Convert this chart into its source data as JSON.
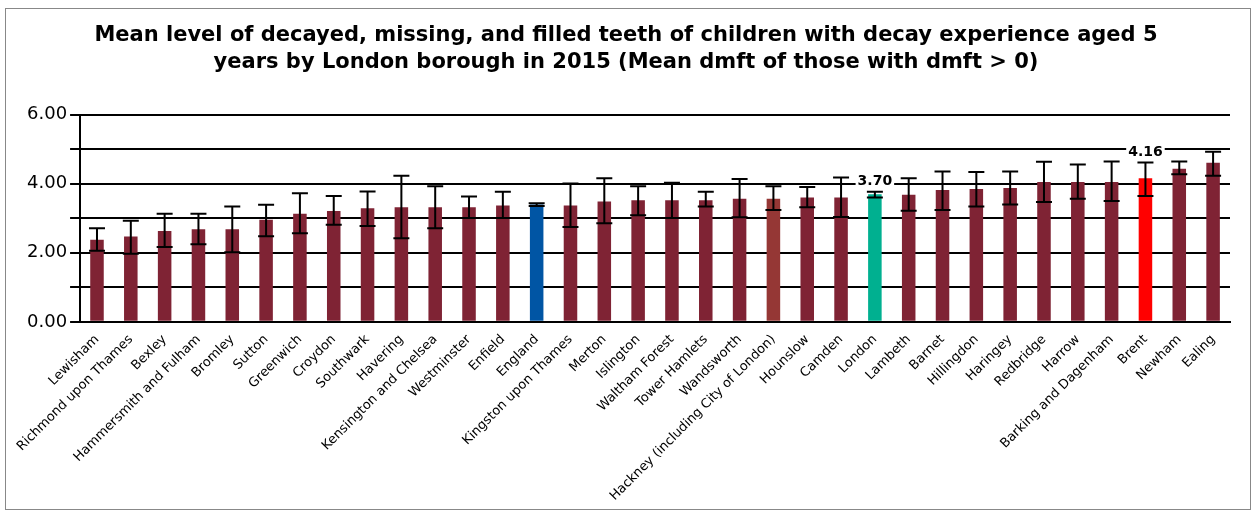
{
  "chart_data": {
    "type": "bar",
    "title": "Mean level of decayed, missing, and filled teeth of children with decay experience aged 5 years by London borough in 2015 (Mean dmft of those with dmft > 0)",
    "categories": [
      "Lewisham",
      "Richmond upon Thames",
      "Bexley",
      "Hammersmith and Fulham",
      "Bromley",
      "Sutton",
      "Greenwich",
      "Croydon",
      "Southwark",
      "Havering",
      "Kensington and Chelsea",
      "Westminster",
      "Enfield",
      "England",
      "Kingston upon Thames",
      "Merton",
      "Islington",
      "Waltham Forest",
      "Tower Hamlets",
      "Wandsworth",
      "Hackney (including City of London)",
      "Hounslow",
      "Camden",
      "London",
      "Lambeth",
      "Barnet",
      "Hillingdon",
      "Haringey",
      "Redbridge",
      "Harrow",
      "Barking and Dagenham",
      "Brent",
      "Newham",
      "Ealing"
    ],
    "values": [
      2.38,
      2.47,
      2.63,
      2.68,
      2.68,
      2.96,
      3.13,
      3.21,
      3.29,
      3.32,
      3.32,
      3.32,
      3.37,
      3.4,
      3.37,
      3.49,
      3.52,
      3.52,
      3.52,
      3.57,
      3.57,
      3.6,
      3.6,
      3.7,
      3.68,
      3.82,
      3.85,
      3.88,
      4.05,
      4.05,
      4.05,
      4.16,
      4.44,
      4.61
    ],
    "colors": [
      "#7f2334",
      "#7f2334",
      "#7f2334",
      "#7f2334",
      "#7f2334",
      "#7f2334",
      "#7f2334",
      "#7f2334",
      "#7f2334",
      "#7f2334",
      "#7f2334",
      "#7f2334",
      "#7f2334",
      "#0055a4",
      "#7f2334",
      "#7f2334",
      "#7f2334",
      "#7f2334",
      "#7f2334",
      "#7f2334",
      "#953735",
      "#7f2334",
      "#7f2334",
      "#00b090",
      "#7f2334",
      "#7f2334",
      "#7f2334",
      "#7f2334",
      "#7f2334",
      "#7f2334",
      "#7f2334",
      "#ff0000",
      "#7f2334",
      "#7f2334"
    ],
    "errors": [
      [
        2.06,
        2.71
      ],
      [
        1.97,
        2.93
      ],
      [
        2.17,
        3.13
      ],
      [
        2.25,
        3.13
      ],
      [
        2.02,
        3.34
      ],
      [
        2.48,
        3.39
      ],
      [
        2.57,
        3.73
      ],
      [
        2.81,
        3.65
      ],
      [
        2.78,
        3.78
      ],
      [
        2.42,
        4.23
      ],
      [
        2.71,
        3.93
      ],
      [
        3.01,
        3.63
      ],
      [
        3.01,
        3.77
      ],
      [
        3.36,
        3.44
      ],
      [
        2.75,
        4.01
      ],
      [
        2.86,
        4.16
      ],
      [
        3.09,
        3.93
      ],
      [
        3.01,
        4.03
      ],
      [
        3.34,
        3.77
      ],
      [
        3.03,
        4.14
      ],
      [
        3.24,
        3.93
      ],
      [
        3.32,
        3.91
      ],
      [
        3.04,
        4.18
      ],
      [
        3.6,
        3.77
      ],
      [
        3.22,
        4.16
      ],
      [
        3.24,
        4.36
      ],
      [
        3.34,
        4.34
      ],
      [
        3.4,
        4.36
      ],
      [
        3.47,
        4.64
      ],
      [
        3.57,
        4.56
      ],
      [
        3.5,
        4.65
      ],
      [
        3.65,
        4.62
      ],
      [
        4.28,
        4.65
      ],
      [
        4.23,
        4.93
      ]
    ],
    "value_labels": [
      null,
      null,
      null,
      null,
      null,
      null,
      null,
      null,
      null,
      null,
      null,
      null,
      null,
      null,
      null,
      null,
      null,
      null,
      null,
      null,
      null,
      null,
      null,
      "3.70",
      null,
      null,
      null,
      null,
      null,
      null,
      null,
      "4.16",
      null,
      null
    ],
    "ylim": [
      0,
      6
    ],
    "yticks": [
      {
        "value": 0,
        "label": "0.00"
      },
      {
        "value": 1,
        "label": null
      },
      {
        "value": 2,
        "label": "2.00"
      },
      {
        "value": 3,
        "label": null
      },
      {
        "value": 4,
        "label": "4.00"
      },
      {
        "value": 5,
        "label": null
      },
      {
        "value": 6,
        "label": "6.00"
      }
    ],
    "grid": "y",
    "legend": false
  }
}
